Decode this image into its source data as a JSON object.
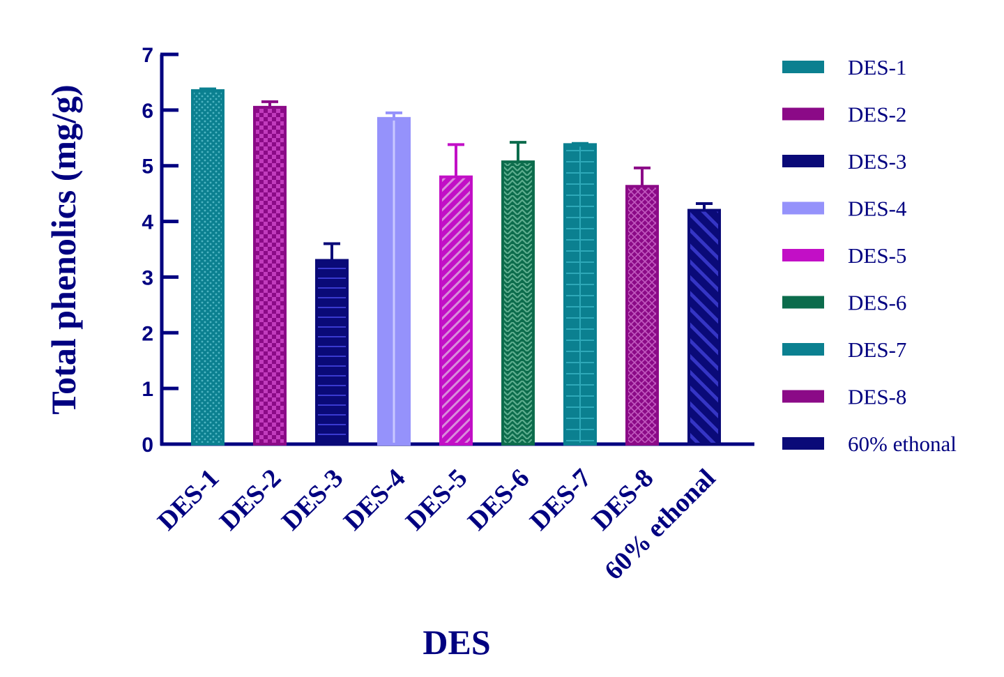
{
  "chart_data": {
    "type": "bar",
    "xlabel": "DES",
    "ylabel": "Total phenolics (mg/g)",
    "ylim": [
      0,
      7
    ],
    "yticks": [
      "0",
      "1",
      "2",
      "3",
      "4",
      "5",
      "6",
      "7"
    ],
    "categories": [
      "DES-1",
      "DES-2",
      "DES-3",
      "DES-4",
      "DES-5",
      "DES-6",
      "DES-7",
      "DES-8",
      "60% ethonal"
    ],
    "values": [
      6.35,
      6.05,
      3.3,
      5.85,
      4.8,
      5.07,
      5.38,
      4.63,
      4.2
    ],
    "errors": [
      0.03,
      0.1,
      0.3,
      0.1,
      0.58,
      0.35,
      0.02,
      0.33,
      0.12
    ],
    "legend_placement": "right",
    "grid": false,
    "colors": [
      "#0b8090",
      "#8b0a87",
      "#0a0a78",
      "#9592fb",
      "#c20fc6",
      "#0c6c4c",
      "#0b8090",
      "#8b0a87",
      "#0a0a78"
    ],
    "patterns": [
      "dots",
      "checker",
      "horizontal-lines",
      "vertical-line",
      "diagonal",
      "zigzag",
      "grid",
      "crosshatch",
      "wide-diagonal"
    ],
    "axis_color": "#000080"
  }
}
